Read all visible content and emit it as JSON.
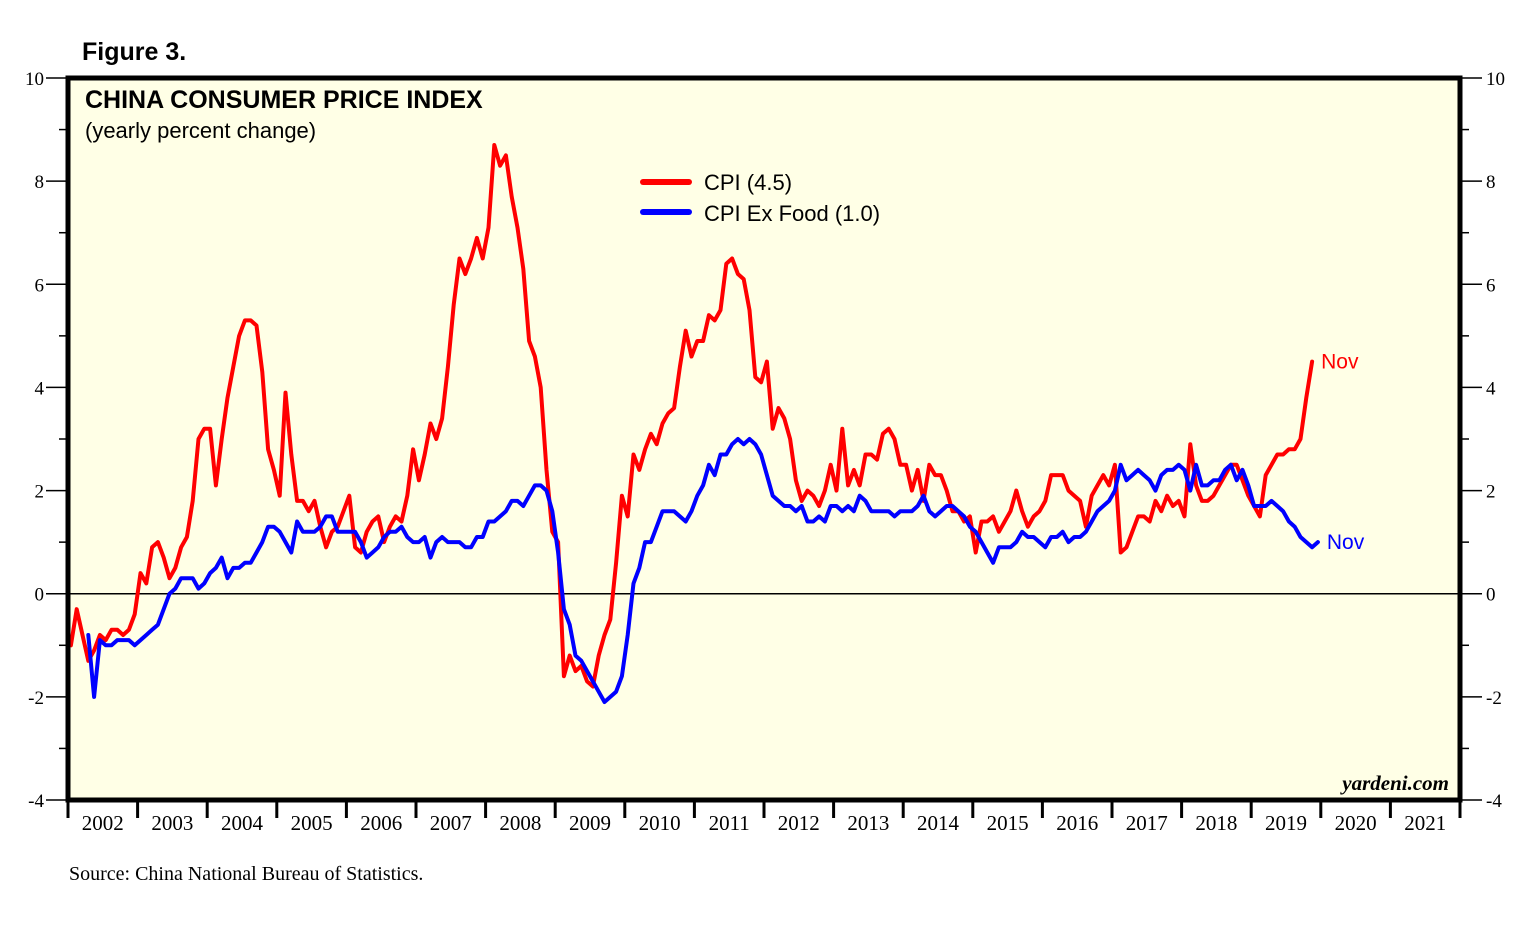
{
  "figure_label": "Figure 3.",
  "source": "Source: China National Bureau of Statistics.",
  "brand": "yardeni.com",
  "colors": {
    "plot_background": "#ffffe6",
    "cpi": "#ff0000",
    "cpi_ex_food": "#0000ff",
    "axis": "#000000"
  },
  "chart_data": {
    "type": "line",
    "title": "CHINA CONSUMER PRICE INDEX",
    "subtitle": "(yearly percent change)",
    "xlabel": "",
    "ylabel": "",
    "ylim": [
      -4,
      10
    ],
    "yticks_major": [
      -4,
      -2,
      0,
      2,
      4,
      6,
      8,
      10
    ],
    "yticks_minor": [
      -3,
      -1,
      1,
      3,
      5,
      7,
      9
    ],
    "y_axis_sides": [
      "left",
      "right"
    ],
    "zero_line": true,
    "grid": false,
    "x_categories": [
      "2002",
      "2003",
      "2004",
      "2005",
      "2006",
      "2007",
      "2008",
      "2009",
      "2010",
      "2011",
      "2012",
      "2013",
      "2014",
      "2015",
      "2016",
      "2017",
      "2018",
      "2019",
      "2020",
      "2021"
    ],
    "x_start": "2002-01",
    "x_end": "2021-12",
    "legend": {
      "placement": "top-center",
      "entries": [
        "CPI (4.5)",
        "CPI Ex Food (1.0)"
      ]
    },
    "series": [
      {
        "name": "CPI",
        "legend_label": "CPI (4.5)",
        "last_value": 4.5,
        "end_label": "Nov",
        "start": "2002-01",
        "frequency": "monthly",
        "values": [
          -1.0,
          -0.3,
          -0.8,
          -1.3,
          -1.1,
          -0.8,
          -0.9,
          -0.7,
          -0.7,
          -0.8,
          -0.7,
          -0.4,
          0.4,
          0.2,
          0.9,
          1.0,
          0.7,
          0.3,
          0.5,
          0.9,
          1.1,
          1.8,
          3.0,
          3.2,
          3.2,
          2.1,
          3.0,
          3.8,
          4.4,
          5.0,
          5.3,
          5.3,
          5.2,
          4.3,
          2.8,
          2.4,
          1.9,
          3.9,
          2.7,
          1.8,
          1.8,
          1.6,
          1.8,
          1.3,
          0.9,
          1.2,
          1.3,
          1.6,
          1.9,
          0.9,
          0.8,
          1.2,
          1.4,
          1.5,
          1.0,
          1.3,
          1.5,
          1.4,
          1.9,
          2.8,
          2.2,
          2.7,
          3.3,
          3.0,
          3.4,
          4.4,
          5.6,
          6.5,
          6.2,
          6.5,
          6.9,
          6.5,
          7.1,
          8.7,
          8.3,
          8.5,
          7.7,
          7.1,
          6.3,
          4.9,
          4.6,
          4.0,
          2.4,
          1.2,
          1.0,
          -1.6,
          -1.2,
          -1.5,
          -1.4,
          -1.7,
          -1.8,
          -1.2,
          -0.8,
          -0.5,
          0.6,
          1.9,
          1.5,
          2.7,
          2.4,
          2.8,
          3.1,
          2.9,
          3.3,
          3.5,
          3.6,
          4.4,
          5.1,
          4.6,
          4.9,
          4.9,
          5.4,
          5.3,
          5.5,
          6.4,
          6.5,
          6.2,
          6.1,
          5.5,
          4.2,
          4.1,
          4.5,
          3.2,
          3.6,
          3.4,
          3.0,
          2.2,
          1.8,
          2.0,
          1.9,
          1.7,
          2.0,
          2.5,
          2.0,
          3.2,
          2.1,
          2.4,
          2.1,
          2.7,
          2.7,
          2.6,
          3.1,
          3.2,
          3.0,
          2.5,
          2.5,
          2.0,
          2.4,
          1.8,
          2.5,
          2.3,
          2.3,
          2.0,
          1.6,
          1.6,
          1.4,
          1.5,
          0.8,
          1.4,
          1.4,
          1.5,
          1.2,
          1.4,
          1.6,
          2.0,
          1.6,
          1.3,
          1.5,
          1.6,
          1.8,
          2.3,
          2.3,
          2.3,
          2.0,
          1.9,
          1.8,
          1.3,
          1.9,
          2.1,
          2.3,
          2.1,
          2.5,
          0.8,
          0.9,
          1.2,
          1.5,
          1.5,
          1.4,
          1.8,
          1.6,
          1.9,
          1.7,
          1.8,
          1.5,
          2.9,
          2.1,
          1.8,
          1.8,
          1.9,
          2.1,
          2.3,
          2.5,
          2.5,
          2.2,
          1.9,
          1.7,
          1.5,
          2.3,
          2.5,
          2.7,
          2.7,
          2.8,
          2.8,
          3.0,
          3.8,
          4.5
        ]
      },
      {
        "name": "CPI Ex Food",
        "legend_label": "CPI Ex Food (1.0)",
        "last_value": 1.0,
        "end_label": "Nov",
        "start": "2002-04",
        "frequency": "monthly",
        "values": [
          -0.8,
          -2.0,
          -0.9,
          -1.0,
          -1.0,
          -0.9,
          -0.9,
          -0.9,
          -1.0,
          -0.9,
          -0.8,
          -0.7,
          -0.6,
          -0.3,
          0.0,
          0.1,
          0.3,
          0.3,
          0.3,
          0.1,
          0.2,
          0.4,
          0.5,
          0.7,
          0.3,
          0.5,
          0.5,
          0.6,
          0.6,
          0.8,
          1.0,
          1.3,
          1.3,
          1.2,
          1.0,
          0.8,
          1.4,
          1.2,
          1.2,
          1.2,
          1.3,
          1.5,
          1.5,
          1.2,
          1.2,
          1.2,
          1.2,
          1.0,
          0.7,
          0.8,
          0.9,
          1.1,
          1.2,
          1.2,
          1.3,
          1.1,
          1.0,
          1.0,
          1.1,
          0.7,
          1.0,
          1.1,
          1.0,
          1.0,
          1.0,
          0.9,
          0.9,
          1.1,
          1.1,
          1.4,
          1.4,
          1.5,
          1.6,
          1.8,
          1.8,
          1.7,
          1.9,
          2.1,
          2.1,
          2.0,
          1.6,
          0.8,
          -0.3,
          -0.6,
          -1.2,
          -1.3,
          -1.5,
          -1.7,
          -1.9,
          -2.1,
          -2.0,
          -1.9,
          -1.6,
          -0.8,
          0.2,
          0.5,
          1.0,
          1.0,
          1.3,
          1.6,
          1.6,
          1.6,
          1.5,
          1.4,
          1.6,
          1.9,
          2.1,
          2.5,
          2.3,
          2.7,
          2.7,
          2.9,
          3.0,
          2.9,
          3.0,
          2.9,
          2.7,
          2.3,
          1.9,
          1.8,
          1.7,
          1.7,
          1.6,
          1.7,
          1.4,
          1.4,
          1.5,
          1.4,
          1.7,
          1.7,
          1.6,
          1.7,
          1.6,
          1.9,
          1.8,
          1.6,
          1.6,
          1.6,
          1.6,
          1.5,
          1.6,
          1.6,
          1.6,
          1.7,
          1.9,
          1.6,
          1.5,
          1.6,
          1.7,
          1.7,
          1.6,
          1.5,
          1.3,
          1.2,
          1.0,
          0.8,
          0.6,
          0.9,
          0.9,
          0.9,
          1.0,
          1.2,
          1.1,
          1.1,
          1.0,
          0.9,
          1.1,
          1.1,
          1.2,
          1.0,
          1.1,
          1.1,
          1.2,
          1.4,
          1.6,
          1.7,
          1.8,
          2.0,
          2.5,
          2.2,
          2.3,
          2.4,
          2.3,
          2.2,
          2.0,
          2.3,
          2.4,
          2.4,
          2.5,
          2.4,
          2.0,
          2.5,
          2.1,
          2.1,
          2.2,
          2.2,
          2.4,
          2.5,
          2.2,
          2.4,
          2.1,
          1.7,
          1.7,
          1.7,
          1.8,
          1.7,
          1.6,
          1.4,
          1.3,
          1.1,
          1.0,
          0.9,
          1.0
        ]
      }
    ]
  }
}
